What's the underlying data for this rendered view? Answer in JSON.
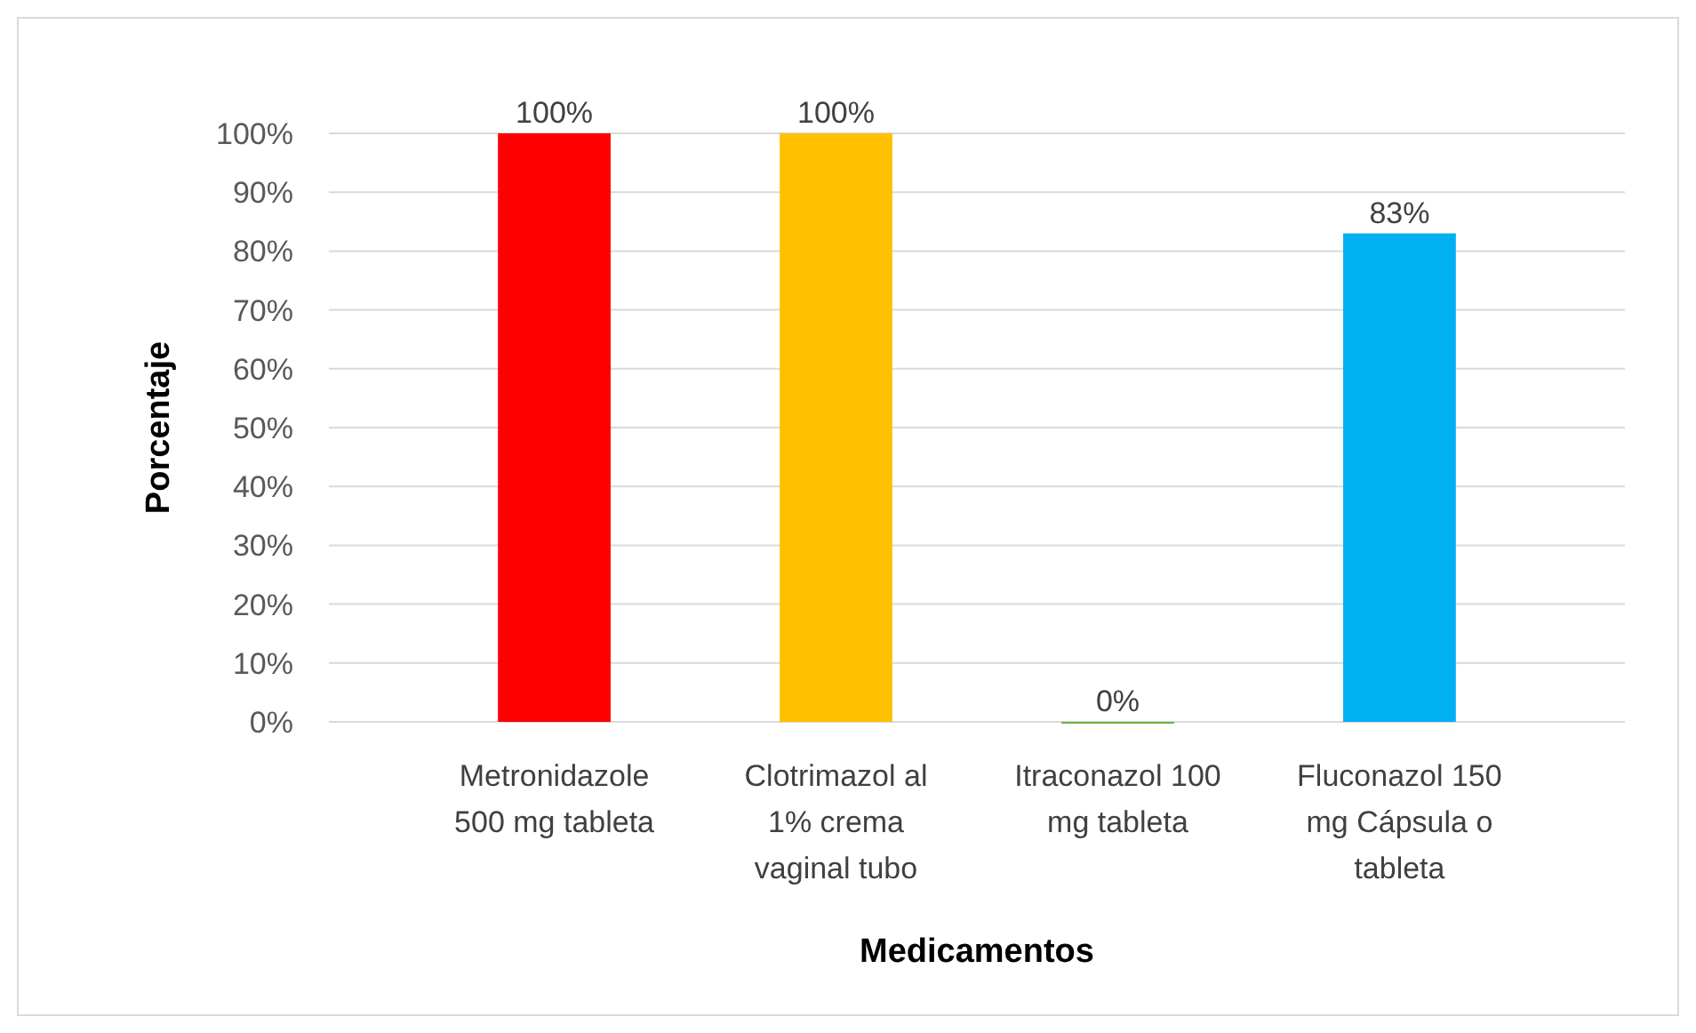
{
  "chart_data": {
    "type": "bar",
    "xlabel": "Medicamentos",
    "ylabel": "Porcentaje",
    "categories": [
      "Metronidazole 500 mg tableta",
      "Clotrimazol al 1% crema vaginal tubo",
      "Itraconazol 100 mg tableta",
      "Fluconazol 150 mg Cápsula o tableta"
    ],
    "values": [
      100,
      100,
      0,
      83
    ],
    "colors": [
      "#ff0000",
      "#ffc000",
      "#70ad47",
      "#00b0f0"
    ],
    "value_labels": [
      "100%",
      "100%",
      "0%",
      "83%"
    ],
    "ylim": [
      0,
      100
    ],
    "yticks": [
      {
        "value": 0,
        "label": "0%"
      },
      {
        "value": 10,
        "label": "10%"
      },
      {
        "value": 20,
        "label": "20%"
      },
      {
        "value": 30,
        "label": "30%"
      },
      {
        "value": 40,
        "label": "40%"
      },
      {
        "value": 50,
        "label": "50%"
      },
      {
        "value": 60,
        "label": "60%"
      },
      {
        "value": 70,
        "label": "70%"
      },
      {
        "value": 80,
        "label": "80%"
      },
      {
        "value": 90,
        "label": "90%"
      },
      {
        "value": 100,
        "label": "100%"
      }
    ],
    "grid": "y"
  }
}
